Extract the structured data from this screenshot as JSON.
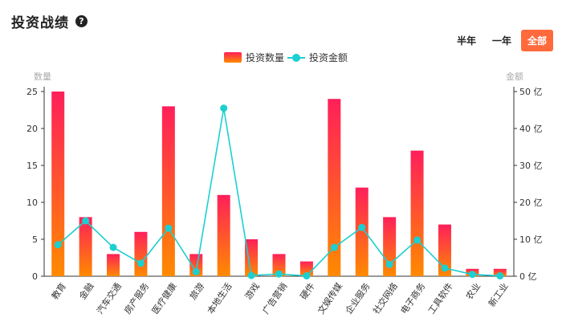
{
  "header": {
    "title": "投资战绩",
    "help_icon": "question-circle-icon"
  },
  "period_tabs": [
    {
      "label": "半年",
      "active": false
    },
    {
      "label": "一年",
      "active": false
    },
    {
      "label": "全部",
      "active": true
    }
  ],
  "colors": {
    "bar_top": "#ff1f5a",
    "bar_bottom": "#ff8a00",
    "line": "#1ccfd1",
    "active_tab": "#ff6a3d"
  },
  "chart_data": {
    "type": "bar",
    "categories": [
      "教育",
      "金融",
      "汽车交通",
      "房产服务",
      "医疗健康",
      "旅游",
      "本地生活",
      "游戏",
      "广告营销",
      "硬件",
      "文娱传媒",
      "企业服务",
      "社交网络",
      "电子商务",
      "工具软件",
      "农业",
      "新工业"
    ],
    "series": [
      {
        "name": "投资数量",
        "type": "bar",
        "axis": "left",
        "values": [
          25,
          8,
          3,
          6,
          23,
          3,
          11,
          5,
          3,
          2,
          24,
          12,
          8,
          17,
          7,
          1,
          1
        ]
      },
      {
        "name": "投资金额",
        "type": "line",
        "axis": "right",
        "values": [
          8.5,
          15,
          7.8,
          3.5,
          13,
          1.2,
          45.5,
          0.2,
          0.6,
          0.1,
          7.8,
          13.2,
          3.2,
          9.8,
          2.2,
          0.5,
          0.1
        ]
      }
    ],
    "y_left": {
      "label": "数量",
      "range": [
        0,
        25
      ],
      "ticks": [
        "0",
        "5",
        "10",
        "15",
        "20",
        "25"
      ]
    },
    "y_right": {
      "label": "金额",
      "range": [
        0,
        50
      ],
      "ticks": [
        "0 亿",
        "10 亿",
        "20 亿",
        "30 亿",
        "40 亿",
        "50 亿"
      ]
    },
    "legend_position": "top-center",
    "grid": false
  }
}
